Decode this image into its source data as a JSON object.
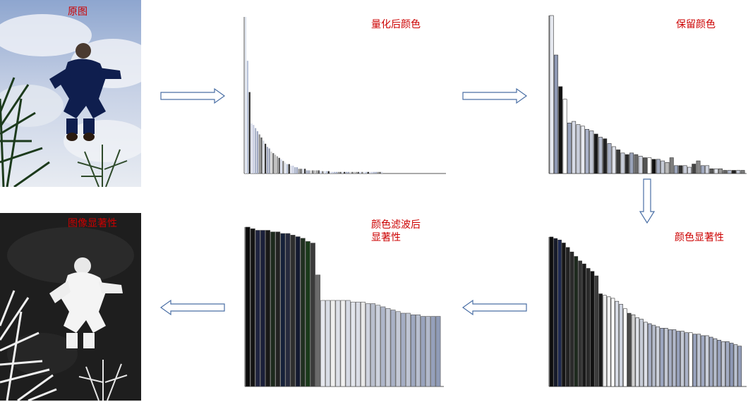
{
  "labels": {
    "original": "原图",
    "saliency_map": "图像显著性",
    "quantized": "量化后颜色",
    "retained": "保留颜色",
    "color_saliency": "颜色显著性",
    "filtered_saliency": "颜色滤波后\n显著性"
  },
  "colors": {
    "label": "#cc0000",
    "arrow": "#4a6fa5"
  },
  "chart_data": [
    {
      "id": "quantized",
      "type": "bar",
      "title": "量化后颜色",
      "values": [
        100,
        72,
        52,
        32,
        31,
        29,
        27,
        25,
        23,
        21,
        19,
        17,
        16,
        14,
        13,
        12,
        11,
        10,
        9,
        8,
        7,
        6,
        6,
        5,
        5,
        4,
        4,
        3,
        3,
        3,
        3,
        2,
        2,
        2,
        2,
        2,
        2,
        2,
        1.5,
        1.5,
        1.5,
        1.5,
        1.5,
        1,
        1,
        1,
        1,
        1,
        1,
        1,
        1,
        1,
        1,
        1,
        1,
        1,
        1,
        1,
        1,
        1,
        1,
        1,
        1,
        1,
        1,
        1,
        1,
        1,
        1,
        1
      ],
      "colors": [
        "#dfe4ee",
        "#b8c2d8",
        "#222222",
        "#d4d8e6",
        "#c5cbe0",
        "#aab3c8",
        "#9fa8c2",
        "#888888",
        "#555555",
        "#cfd3de",
        "#333333",
        "#a0a8c0",
        "#8f97ad",
        "#cccccc",
        "#666666",
        "#bbbbbb",
        "#999999",
        "#444444",
        "#cfd6e8",
        "#777777"
      ]
    },
    {
      "id": "retained",
      "type": "bar",
      "title": "保留颜色",
      "values": [
        100,
        75,
        55,
        47,
        32,
        33,
        31,
        30,
        28,
        27,
        25,
        23,
        22,
        19,
        17,
        15,
        13,
        12,
        13,
        12,
        11,
        10,
        10,
        9,
        9,
        8,
        7,
        10,
        5,
        5,
        5,
        4,
        6,
        8,
        5,
        5,
        3,
        3,
        3,
        2,
        2,
        2,
        2,
        2
      ],
      "colors": [
        "#e6e9f0",
        "#8f9ab5",
        "#111111",
        "#ffffff",
        "#98a3bd",
        "#d6dae6",
        "#c9cedb",
        "#e8eaf0",
        "#aab2c8",
        "#c2c7d4",
        "#1a1a1a",
        "#b5bcce",
        "#222222",
        "#a7afc4",
        "#dfe2ea",
        "#3a3a3a",
        "#c8cdd9",
        "#2a2a2a",
        "#9aa3b9",
        "#6a6a6a",
        "#cfd3de",
        "#555555",
        "#ffffff",
        "#111111",
        "#a4acc1",
        "#c6cbd6",
        "#bbbbbb",
        "#7d7d7d",
        "#9ca5bb",
        "#333333",
        "#c8ccd8",
        "#d9dce6",
        "#444444",
        "#888888",
        "#a1a9bf",
        "#cfd3de",
        "#555555",
        "#e0e3ea",
        "#999999",
        "#666666",
        "#b0b7ca",
        "#222222",
        "#c0c5d2",
        "#7a7a7a"
      ]
    },
    {
      "id": "color_saliency",
      "type": "bar",
      "title": "颜色显著性",
      "values": [
        100,
        99,
        98,
        96,
        93,
        90,
        87,
        84,
        82,
        79,
        77,
        74,
        62,
        61,
        60,
        59,
        57,
        55,
        52,
        49,
        48,
        46,
        45,
        43,
        42,
        41,
        40,
        39,
        39,
        38,
        38,
        37,
        37,
        36,
        36,
        35,
        35,
        34,
        34,
        33,
        32,
        31,
        30,
        30,
        29,
        28,
        27
      ],
      "colors": [
        "#0d0d0d",
        "#161a2a",
        "#1f2a52",
        "#151515",
        "#222222",
        "#2b2b2b",
        "#1e2a1e",
        "#333333",
        "#1a1a1a",
        "#2a2a2a",
        "#111111",
        "#3c3c3c",
        "#181818",
        "#eaeaea",
        "#f2f2f2",
        "#ffffff",
        "#d8dce6",
        "#cfd4e0",
        "#ffffff",
        "#4a4a4a",
        "#d0d0d0",
        "#e0e3ea",
        "#c6cbd6",
        "#dde0e8",
        "#a8b0c6",
        "#b7bdcc",
        "#ced2dc",
        "#9ba5bf",
        "#c3c8d4",
        "#a6aec4",
        "#b2b9cb",
        "#98a2bc",
        "#c4c9d5",
        "#aab2c7",
        "#ffffff",
        "#9aa4be",
        "#bfc5d3",
        "#a0a9c1",
        "#cacfdb",
        "#9fa8c0",
        "#b6bdcd",
        "#98a2bd",
        "#c1c6d3",
        "#a2abc2",
        "#8e98b4",
        "#bbc2d1",
        "#96a0bb"
      ]
    },
    {
      "id": "filtered_saliency",
      "type": "bar",
      "title": "颜色滤波后显著性",
      "values": [
        100,
        99,
        98,
        98,
        98,
        97,
        97,
        96,
        96,
        95,
        94,
        93,
        91,
        90,
        70,
        54,
        54,
        54,
        54,
        54,
        54,
        53,
        53,
        53,
        52,
        52,
        51,
        50,
        49,
        48,
        47,
        46,
        46,
        45,
        45,
        44,
        44,
        44,
        44
      ],
      "colors": [
        "#0d0d0d",
        "#141414",
        "#1f2440",
        "#1a1f3a",
        "#181818",
        "#1d2a1d",
        "#222222",
        "#15203a",
        "#262a3e",
        "#2e2e2e",
        "#141a30",
        "#203020",
        "#1a3a1a",
        "#3a3a3a",
        "#6b6b6b",
        "#e6e8ee",
        "#d9dde6",
        "#eeeeee",
        "#dde0e8",
        "#f0f0f0",
        "#d6dae4",
        "#e2e5ec",
        "#dadde6",
        "#e8e8e8",
        "#cfd3de",
        "#b9bfcd",
        "#ced3de",
        "#aeb6c9",
        "#c8cdd9",
        "#a9b1c6",
        "#c4c9d6",
        "#a4adc4",
        "#bfc5d4",
        "#9ea8c0",
        "#b8bfcf",
        "#98a3bd",
        "#b2b9cb",
        "#95a0bb",
        "#8f9bb7"
      ]
    }
  ]
}
